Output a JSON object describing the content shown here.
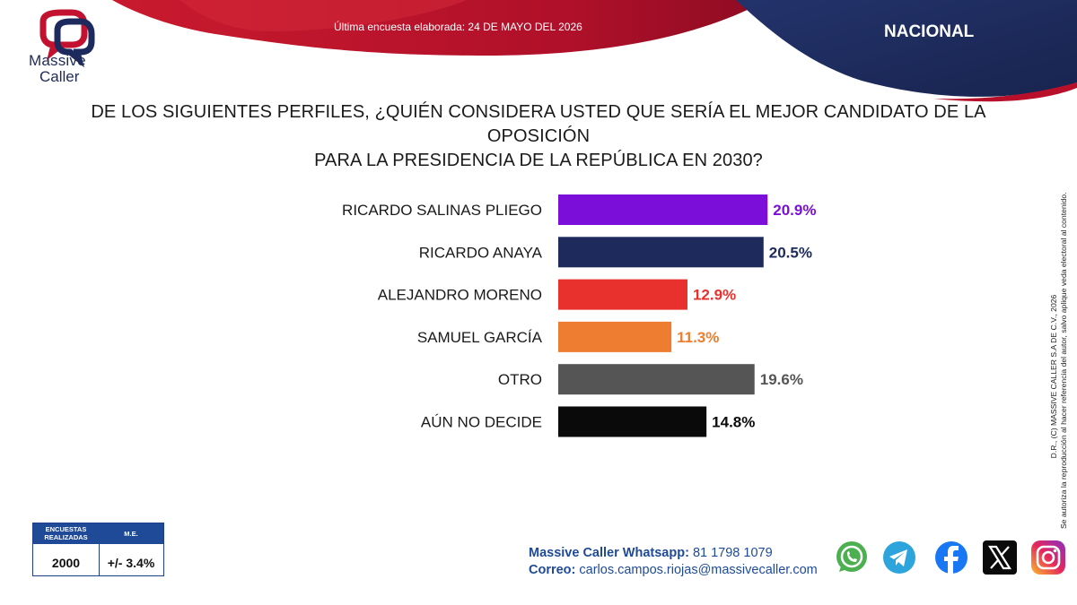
{
  "header": {
    "logo_line1": "Massive",
    "logo_line2": "Caller",
    "updated": "Última encuesta elaborada: 24 DE MAYO DEL 2026",
    "region": "NACIONAL"
  },
  "question": {
    "line1": "DE LOS SIGUIENTES PERFILES, ¿QUIÉN CONSIDERA USTED QUE SERÍA EL MEJOR CANDIDATO DE LA OPOSICIÓN",
    "line2": "PARA LA PRESIDENCIA DE LA REPÚBLICA EN 2030?"
  },
  "chart_data": {
    "type": "bar",
    "orientation": "horizontal",
    "categories": [
      "RICARDO SALINAS PLIEGO",
      "RICARDO ANAYA",
      "ALEJANDRO MORENO",
      "SAMUEL GARCÍA",
      "OTRO",
      "AÚN NO DECIDE"
    ],
    "values": [
      20.9,
      20.5,
      12.9,
      11.3,
      19.6,
      14.8
    ],
    "value_labels": [
      "20.9%",
      "20.5%",
      "12.9%",
      "11.3%",
      "19.6%",
      "14.8%"
    ],
    "colors": [
      "#7b0ed8",
      "#1e2a5c",
      "#e8302d",
      "#ee7d31",
      "#555555",
      "#0a0a0a"
    ],
    "label_colors": [
      "#7b0ed8",
      "#1e2a5c",
      "#e8302d",
      "#ee7d31",
      "#555555",
      "#0a0a0a"
    ],
    "xlim": [
      0,
      25
    ],
    "grid": false,
    "legend": false
  },
  "stats": {
    "col1_header": "ENCUESTAS REALIZADAS",
    "col2_header": "M.E.",
    "col1_value": "2000",
    "col2_value": "+/- 3.4%"
  },
  "contact": {
    "whatsapp_label": "Massive Caller Whatsapp:",
    "whatsapp_number": "81 1798 1079",
    "email_label": "Correo:",
    "email": "carlos.campos.riojas@massivecaller.com"
  },
  "copyright": {
    "line1": "D.R., (C) MASSIVE CALLER S.A DE C.V., 2026",
    "line2": "Se autoriza la reproducción al hacer referencia del autor, salvo aplique veda electoral al contenido."
  },
  "social_icons": [
    "whatsapp-icon",
    "telegram-icon",
    "facebook-icon",
    "x-icon",
    "instagram-icon"
  ],
  "theme": {
    "red": "#c3122f",
    "navy": "#1d2a5e"
  }
}
